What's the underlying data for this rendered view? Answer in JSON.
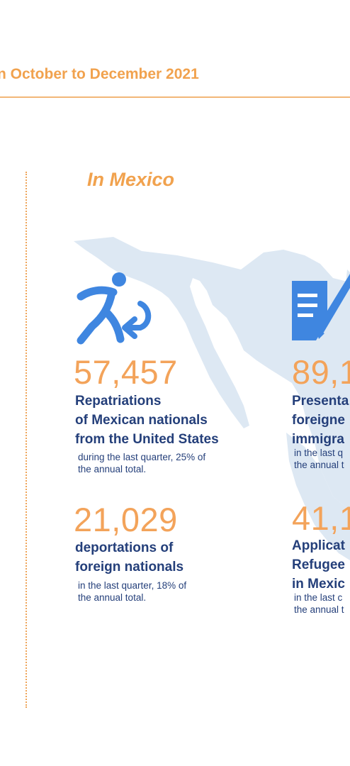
{
  "header": {
    "title": "n October to December 2021"
  },
  "section": {
    "title": "In Mexico"
  },
  "stats": [
    {
      "icon": "repatriation-icon",
      "number": "57,457",
      "label_lines": [
        "Repatriations",
        "of Mexican nationals",
        "from the United States"
      ],
      "note_lines": [
        "during the last quarter, 25% of",
        "the annual total."
      ]
    },
    {
      "icon": "document-pen-icon",
      "number": "89,1",
      "label_lines": [
        "Presenta",
        "foreigne",
        "immigra"
      ],
      "note_lines": [
        "in the last q",
        "the annual t"
      ]
    },
    {
      "number": "21,029",
      "label_lines": [
        "deportations of",
        "foreign nationals"
      ],
      "note_lines": [
        "in the last quarter, 18% of",
        "the annual total."
      ]
    },
    {
      "number": "41,1",
      "label_lines": [
        "Applicat",
        "Refugee",
        "in Mexic"
      ],
      "note_lines": [
        "in the last c",
        "the annual t"
      ]
    }
  ],
  "colors": {
    "accent_orange": "#f3a35a",
    "text_navy": "#243f7a",
    "icon_blue": "#3f86e0",
    "map_blue": "#dce7f3"
  }
}
